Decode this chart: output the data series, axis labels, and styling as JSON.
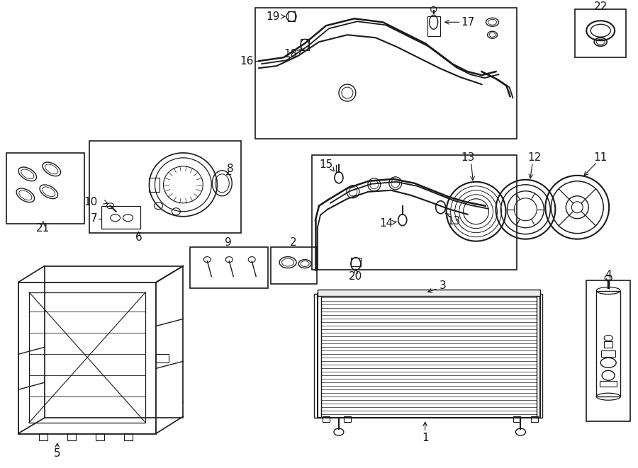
{
  "bg_color": "#ffffff",
  "line_color": "#1a1a1a",
  "figsize": [
    9.0,
    6.61
  ],
  "dpi": 100,
  "lw": 1.0
}
